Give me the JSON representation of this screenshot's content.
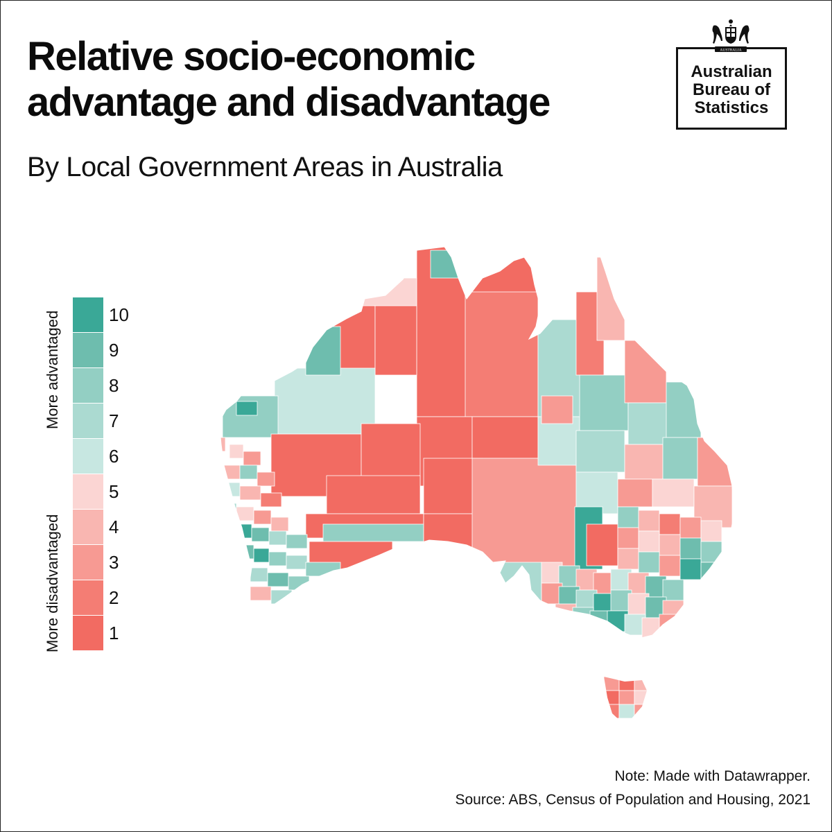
{
  "title_line1": "Relative socio-economic",
  "title_line2": "advantage and disadvantage",
  "subtitle": "By Local Government Areas in Australia",
  "logo": {
    "crest_text": "AUSTRALIA",
    "line1": "Australian",
    "line2": "Bureau of",
    "line3": "Statistics"
  },
  "legend": {
    "top_label": "More advantaged",
    "bottom_label": "More disadvantaged",
    "items": [
      {
        "value": "10",
        "color": "#3aa897"
      },
      {
        "value": "9",
        "color": "#6ebdae"
      },
      {
        "value": "8",
        "color": "#93cfc3"
      },
      {
        "value": "7",
        "color": "#abdad1"
      },
      {
        "value": "6",
        "color": "#c7e7e1"
      },
      {
        "value": "5",
        "color": "#fbd5d3"
      },
      {
        "value": "4",
        "color": "#f9b6b1"
      },
      {
        "value": "3",
        "color": "#f79a93"
      },
      {
        "value": "2",
        "color": "#f47d74"
      },
      {
        "value": "1",
        "color": "#f26b62"
      }
    ]
  },
  "notes": {
    "note": "Note: Made with Datawrapper.",
    "source": "Source: ABS, Census of Population and Housing, 2021"
  }
}
